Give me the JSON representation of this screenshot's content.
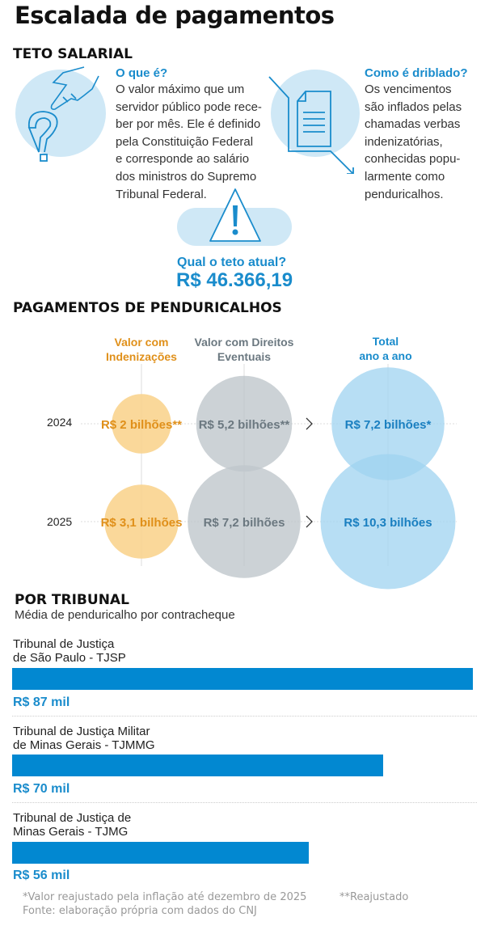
{
  "title": "Escalada de pagamentos",
  "teto": {
    "heading": "TETO SALARIAL",
    "what_q": "O que é?",
    "what_lines": [
      "O valor máximo que um",
      "servidor público pode rece-",
      "ber por mês. Ele é definido",
      "pela Constituição Federal",
      "e corresponde ao salário",
      "dos ministros do Supremo",
      "Tribunal Federal."
    ],
    "how_q": "Como é driblado?",
    "how_lines": [
      "Os vencimentos",
      "são inflados pelas",
      "chamadas verbas",
      "indenizatórias,",
      "conhecidas popu-",
      "larmente como",
      "penduricalhos."
    ],
    "current_q": "Qual o teto atual?",
    "current_value": "R$ 46.366,19",
    "icons": [
      "pointing-hand-icon",
      "question-mark-icon",
      "document-icon",
      "warning-icon"
    ]
  },
  "colors": {
    "accent_blue": "#1a8ccc",
    "bar_blue": "#0288d1",
    "orange": "#e0901a",
    "orange_fill": "#f9d48f",
    "gray_text": "#6b7880",
    "gray_fill": "#bfc7cc",
    "blue_fill": "#9fd3f0",
    "light_blue": "#cfe8f6"
  },
  "chart_data": [
    {
      "type": "bubble",
      "title": "PAGAMENTOS DE PENDURICALHOS",
      "rows": [
        "2024",
        "2025"
      ],
      "columns": [
        "Valor com Indenizações",
        "Valor com Direitos Eventuais",
        "Total ano a ano"
      ],
      "column_labels": [
        [
          "Valor com",
          "Indenizações"
        ],
        [
          "Valor com Direitos",
          "Eventuais"
        ],
        [
          "Total",
          "ano a ano"
        ]
      ],
      "unit": "R$ bilhões",
      "values": [
        [
          2,
          5.2,
          7.2
        ],
        [
          3.1,
          7.2,
          10.3
        ]
      ],
      "labels": [
        [
          "R$ 2 bilhões**",
          "R$ 5,2 bilhões**",
          "R$ 7,2 bilhões*"
        ],
        [
          "R$ 3,1 bilhões",
          "R$ 7,2 bilhões",
          "R$ 10,3 bilhões"
        ]
      ],
      "colors": [
        "#f9d48f",
        "#bfc7cc",
        "#9fd3f0"
      ],
      "text_colors": [
        "#e0901a",
        "#6b7880",
        "#1a7fc0"
      ]
    },
    {
      "type": "bar",
      "title": "POR TRIBUNAL",
      "subtitle": "Média de penduricalho por contracheque",
      "unit": "R$ mil",
      "categories": [
        [
          "Tribunal de Justiça",
          "de São Paulo - TJSP"
        ],
        [
          "Tribunal de Justiça Militar",
          "de Minas Gerais - TJMMG"
        ],
        [
          "Tribunal de Justiça de",
          "Minas Gerais - TJMG"
        ]
      ],
      "values": [
        87,
        70,
        56
      ],
      "value_labels": [
        "R$ 87 mil",
        "R$ 70 mil",
        "R$ 56 mil"
      ],
      "xlim": [
        0,
        87
      ]
    }
  ],
  "footer": {
    "note1": "*Valor reajustado pela inflação até dezembro de 2025",
    "note2": "**Reajustado",
    "source": "Fonte: elaboração própria com dados do CNJ"
  }
}
